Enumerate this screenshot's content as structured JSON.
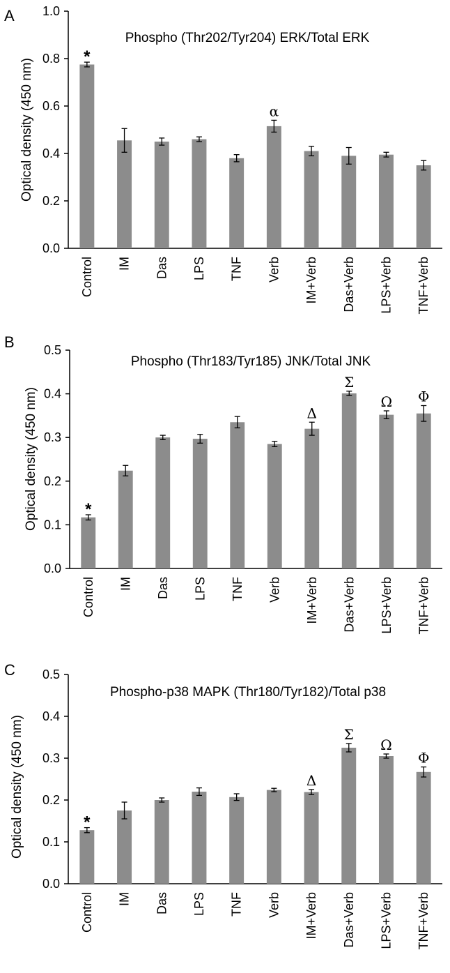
{
  "colors": {
    "bar": "#8c8c8c",
    "axis": "#000000",
    "error": "#000000"
  },
  "chart_data": [
    {
      "type": "bar",
      "panel": "A",
      "title": "Phospho (Thr202/Tyr204) ERK/Total ERK",
      "xlabel": "",
      "ylabel": "Optical density (450 nm)",
      "ylim": [
        0.0,
        1.0
      ],
      "yticks": [
        "0.0",
        "0.2",
        "0.4",
        "0.6",
        "0.8",
        "1.0"
      ],
      "categories": [
        "Control",
        "IM",
        "Das",
        "LPS",
        "TNF",
        "Verb",
        "IM+Verb",
        "Das+Verb",
        "LPS+Verb",
        "TNF+Verb"
      ],
      "values": [
        0.775,
        0.455,
        0.45,
        0.46,
        0.38,
        0.515,
        0.41,
        0.39,
        0.395,
        0.35
      ],
      "errors": [
        0.01,
        0.05,
        0.015,
        0.01,
        0.015,
        0.025,
        0.02,
        0.035,
        0.01,
        0.02
      ],
      "annotations": [
        "*",
        "",
        "",
        "",
        "",
        "α",
        "",
        "",
        "",
        ""
      ],
      "grid": false
    },
    {
      "type": "bar",
      "panel": "B",
      "title": "Phospho (Thr183/Tyr185) JNK/Total JNK",
      "xlabel": "",
      "ylabel": "Optical density (450 nm)",
      "ylim": [
        0.0,
        0.5
      ],
      "yticks": [
        "0.0",
        "0.1",
        "0.2",
        "0.3",
        "0.4",
        "0.5"
      ],
      "categories": [
        "Control",
        "IM",
        "Das",
        "LPS",
        "TNF",
        "Verb",
        "IM+Verb",
        "Das+Verb",
        "LPS+Verb",
        "TNF+Verb"
      ],
      "values": [
        0.117,
        0.224,
        0.3,
        0.297,
        0.335,
        0.285,
        0.32,
        0.401,
        0.352,
        0.355
      ],
      "errors": [
        0.006,
        0.012,
        0.005,
        0.01,
        0.013,
        0.006,
        0.015,
        0.005,
        0.009,
        0.018
      ],
      "annotations": [
        "*",
        "",
        "",
        "",
        "",
        "",
        "Δ",
        "Σ",
        "Ω",
        "Φ"
      ],
      "grid": false
    },
    {
      "type": "bar",
      "panel": "C",
      "title": "Phospho-p38 MAPK (Thr180/Tyr182)/Total p38",
      "xlabel": "",
      "ylabel": "Optical density (450 nm)",
      "ylim": [
        0.0,
        0.5
      ],
      "yticks": [
        "0.0",
        "0.1",
        "0.2",
        "0.3",
        "0.4",
        "0.5"
      ],
      "categories": [
        "Control",
        "IM",
        "Das",
        "LPS",
        "TNF",
        "Verb",
        "IM+Verb",
        "Das+Verb",
        "LPS+Verb",
        "TNF+Verb"
      ],
      "values": [
        0.128,
        0.175,
        0.2,
        0.22,
        0.207,
        0.224,
        0.219,
        0.325,
        0.305,
        0.267
      ],
      "errors": [
        0.006,
        0.02,
        0.005,
        0.009,
        0.008,
        0.004,
        0.006,
        0.01,
        0.005,
        0.012
      ],
      "annotations": [
        "*",
        "",
        "",
        "",
        "",
        "",
        "Δ",
        "Σ",
        "Ω",
        "Φ"
      ],
      "grid": false
    }
  ]
}
